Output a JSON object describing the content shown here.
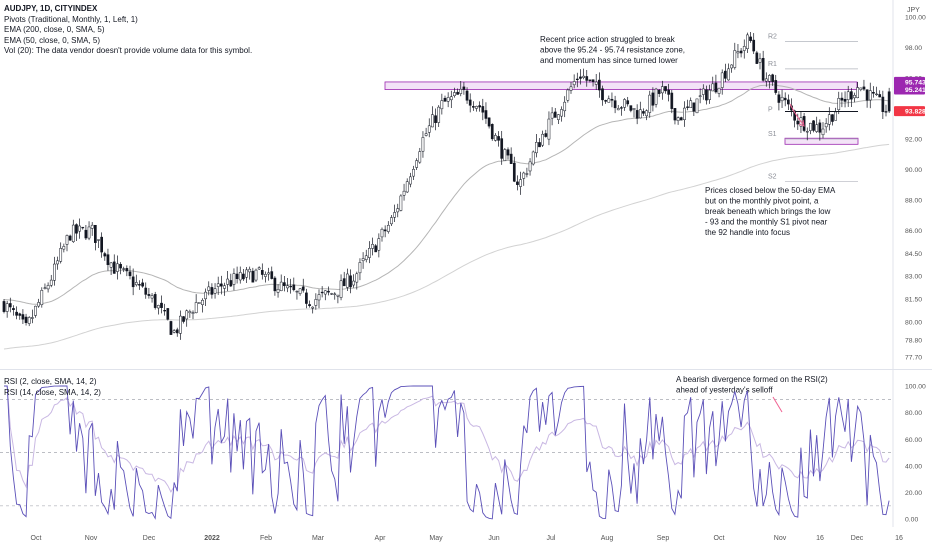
{
  "header": {
    "symbol": "AUDJPY, 1D, CITYINDEX",
    "overlays": [
      "Pivots (Traditional, Monthly, 1, Left, 1)",
      "EMA (200, close, 0, SMA, 5)",
      "EMA (50, close, 0, SMA, 5)",
      "Vol (20): The data vendor doesn't provide volume data for this symbol."
    ]
  },
  "rsi_legend": [
    "RSI (2, close, SMA, 14, 2)",
    "RSI (14, close, SMA, 14, 2)"
  ],
  "colors": {
    "candle": "#131722",
    "ema50": "#b5b5b5",
    "ema200": "#d2d2d2",
    "zone_fill": "#f3e3f7",
    "zone_border": "#9c27b0",
    "rsi2": "#5b50b8",
    "rsi14": "#c9b8e3",
    "arrow": "#f06292",
    "grid_dash": "#9598a1"
  },
  "chart_data": [
    {
      "type": "candlestick",
      "panel": "price",
      "y_axis_unit": "JPY",
      "y_ticks": [
        "100.00",
        "98.00",
        "96.00",
        "94.00",
        "92.00",
        "90.00",
        "88.00",
        "86.00",
        "84.50",
        "83.00",
        "81.50",
        "80.00",
        "78.80",
        "77.70"
      ],
      "ylim": [
        77.0,
        101.0
      ],
      "x_ticks": [
        "Oct",
        "Nov",
        "Dec",
        "2022",
        "Feb",
        "Mar",
        "Apr",
        "May",
        "Jun",
        "Jul",
        "Aug",
        "Sep",
        "Oct",
        "Nov",
        "16",
        "Dec",
        "16"
      ],
      "date_range": [
        "2021-09-27",
        "2022-11-04"
      ],
      "candles": [],
      "series": [
        {
          "name": "EMA (50, close, 0, SMA, 5)",
          "values": []
        },
        {
          "name": "EMA (200, close, 0, SMA, 5)",
          "values": []
        }
      ],
      "pivots": [
        {
          "label": "R2",
          "value": 98.4
        },
        {
          "label": "R1",
          "value": 96.6
        },
        {
          "label": "P",
          "value": 93.8
        },
        {
          "label": "S1",
          "value": 92.0
        },
        {
          "label": "S2",
          "value": 89.2
        }
      ],
      "resistance_zone": [
        95.24,
        95.74
      ],
      "support_box": [
        91.65,
        92.05
      ],
      "price_labels": [
        {
          "text": "95.743",
          "value": 95.743,
          "color": "#9c27b0"
        },
        {
          "text": "95.241",
          "value": 95.241,
          "color": "#9c27b0"
        },
        {
          "text": "93.828",
          "value": 93.828,
          "color": "#f23645"
        }
      ],
      "annotations": [
        {
          "text": "Recent price action struggled to break above the 95.24 - 95.74 resistance zone, and momentum has since turned lower",
          "lines": [
            "Recent price action struggled to break",
            "above the 95.24 - 95.74 resistance zone,",
            "and momentum has since turned lower"
          ]
        },
        {
          "text": "Prices closed below the 50-day EMA but on the monthly pivot point, a break beneath which brings the low - 93 and the monthly S1 pivot near the 92 handle into focus",
          "lines": [
            "Prices closed below the 50-day EMA",
            "but on the monthly pivot point, a",
            "break beneath which brings the low",
            "- 93 and the monthly S1 pivot near",
            "the 92 handle into focus"
          ]
        }
      ]
    },
    {
      "type": "line",
      "panel": "rsi",
      "y_ticks": [
        "100.00",
        "80.00",
        "60.00",
        "40.00",
        "20.00",
        "0.00"
      ],
      "ylim": [
        -5,
        107
      ],
      "levels": [
        90,
        50,
        10
      ],
      "series": [
        {
          "name": "RSI (2, close, SMA, 14, 2)",
          "values": []
        },
        {
          "name": "RSI (14, close, SMA, 14, 2)",
          "values": []
        }
      ],
      "annotations": [
        {
          "text": "A bearish divergence formed on the RSI(2) ahead of yesterday's selloff",
          "lines": [
            "A bearish divergence formed on the RSI(2)",
            "ahead of yesterday's selloff"
          ]
        }
      ]
    }
  ]
}
